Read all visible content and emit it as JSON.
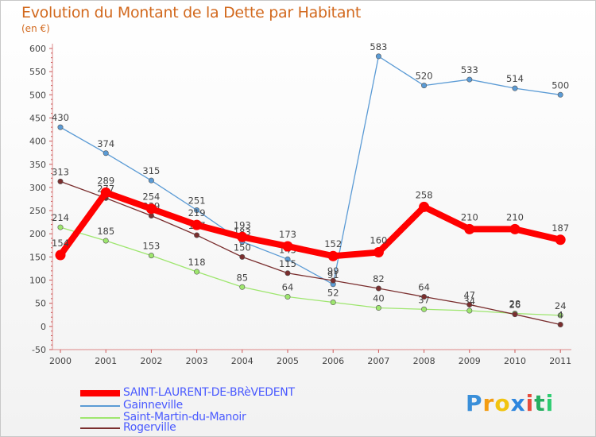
{
  "title": "Evolution du Montant de la Dette par Habitant",
  "subtitle": "(en €)",
  "chart_data": {
    "type": "line",
    "title": "Evolution du Montant de la Dette par Habitant",
    "ylabel": "(en €)",
    "x": [
      "2000",
      "2001",
      "2002",
      "2003",
      "2004",
      "2005",
      "2006",
      "2007",
      "2008",
      "2009",
      "2010",
      "2011"
    ],
    "ylim": [
      -50,
      600
    ],
    "yticks": [
      -50,
      0,
      50,
      100,
      150,
      200,
      250,
      300,
      350,
      400,
      450,
      500,
      550,
      600
    ],
    "grid": false,
    "legend": "bottom-left",
    "series": [
      {
        "name": "Gainneville",
        "color": "#5b9bd5",
        "values": [
          430,
          374,
          315,
          251,
          183,
          145,
          91,
          583,
          520,
          533,
          514,
          500
        ]
      },
      {
        "name": "Saint-Martin-du-Manoir",
        "color": "#9ee66e",
        "values": [
          214,
          185,
          153,
          118,
          85,
          64,
          52,
          40,
          37,
          34,
          28,
          24
        ]
      },
      {
        "name": "Rogerville",
        "color": "#7a2e2e",
        "values": [
          313,
          277,
          239,
          197,
          150,
          115,
          99,
          82,
          64,
          47,
          26,
          4
        ]
      },
      {
        "name": "SAINT-LAURENT-DE-BRèVEDENT",
        "color": "#ff0000",
        "values": [
          154,
          289,
          254,
          219,
          193,
          173,
          152,
          160,
          258,
          210,
          210,
          187
        ]
      }
    ],
    "legend_order": [
      "SAINT-LAURENT-DE-BRèVEDENT",
      "Gainneville",
      "Saint-Martin-du-Manoir",
      "Rogerville"
    ]
  },
  "legend": [
    {
      "label": "SAINT-LAURENT-DE-BRèVEDENT",
      "color": "#ff0000"
    },
    {
      "label": "Gainneville",
      "color": "#5b9bd5"
    },
    {
      "label": "Saint-Martin-du-Manoir",
      "color": "#9ee66e"
    },
    {
      "label": "Rogerville",
      "color": "#7a2e2e"
    }
  ],
  "logo": {
    "letters": [
      "P",
      "r",
      "o",
      "x",
      "i",
      "t",
      "i"
    ],
    "colors": [
      "#3a8fd9",
      "#f39c12",
      "#f1c40f",
      "#2e86de",
      "#e74c3c",
      "#27ae60",
      "#2ecc71"
    ]
  }
}
